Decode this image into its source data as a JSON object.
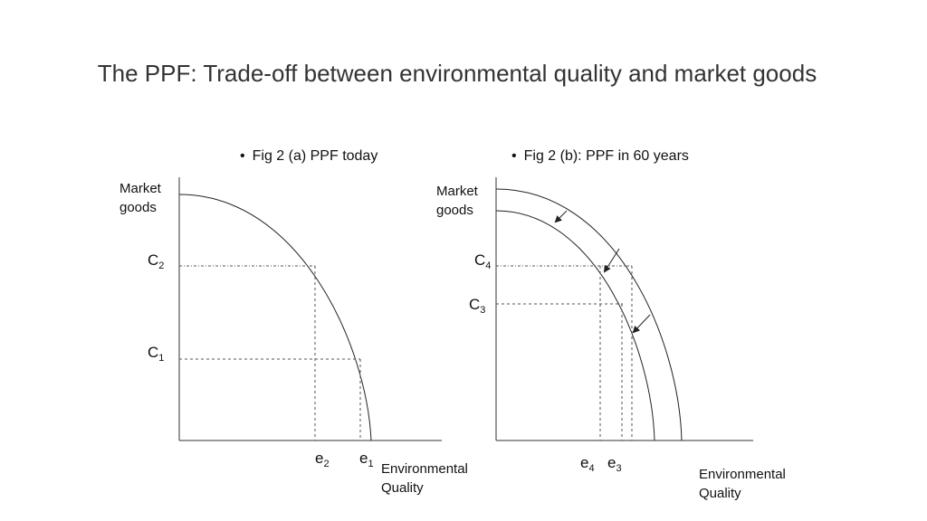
{
  "title": "The PPF: Trade-off between environmental quality and market goods",
  "figures": [
    {
      "caption": "Fig 2 (a) PPF today",
      "y_label": [
        "Market",
        "goods"
      ],
      "x_label": [
        "Environmental",
        "Quality"
      ],
      "y_points": [
        {
          "letter": "C",
          "sub": "2"
        },
        {
          "letter": "C",
          "sub": "1"
        }
      ],
      "x_points": [
        {
          "letter": "e",
          "sub": "2"
        },
        {
          "letter": "e",
          "sub": "1"
        }
      ]
    },
    {
      "caption": "Fig 2 (b): PPF in 60 years",
      "y_label": [
        "Market",
        "goods"
      ],
      "x_label": [
        "Environmental",
        "Quality"
      ],
      "y_points": [
        {
          "letter": "C",
          "sub": "4"
        },
        {
          "letter": "C",
          "sub": "3"
        }
      ],
      "x_points": [
        {
          "letter": "e",
          "sub": "4"
        },
        {
          "letter": "e",
          "sub": "3"
        }
      ]
    }
  ],
  "colors": {
    "axis": "#333333",
    "curve": "#222222",
    "guide": "#555555"
  },
  "bullet": "•"
}
